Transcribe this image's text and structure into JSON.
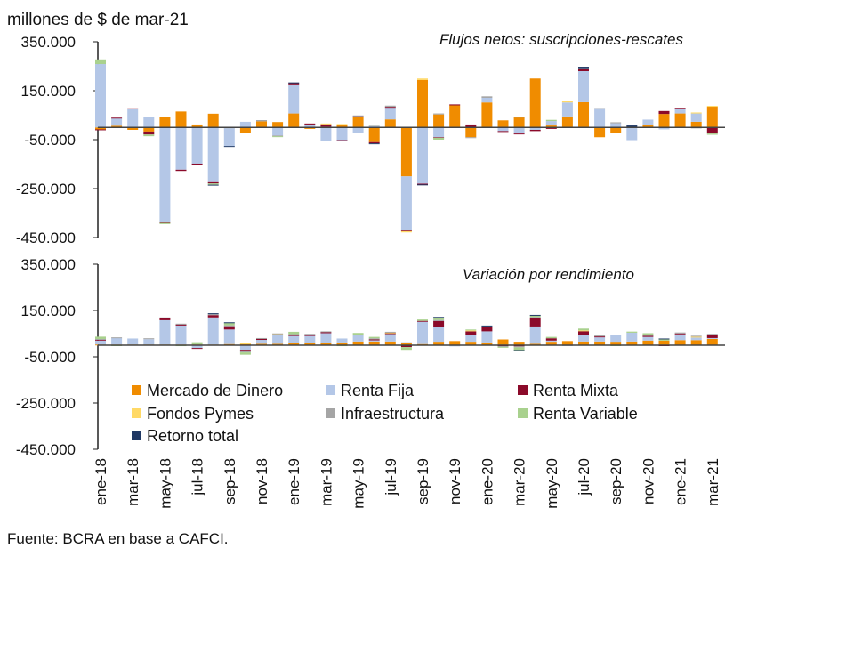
{
  "unit_label": "millones de $ de mar-21",
  "source": "Fuente: BCRA en base a CAFCI.",
  "colors": {
    "Mercado de Dinero": "#F08C00",
    "Renta Fija": "#B4C7E7",
    "Renta Mixta": "#8B0A2A",
    "Fondos Pymes": "#FFD966",
    "Infraestructura": "#A5A5A5",
    "Renta Variable": "#A9D18E",
    "Retorno total": "#1F3864"
  },
  "legend": [
    "Mercado de Dinero",
    "Renta Fija",
    "Renta Mixta",
    "Fondos Pymes",
    "Infraestructura",
    "Renta Variable",
    "Retorno total"
  ],
  "chart_data": [
    {
      "type": "bar",
      "stacked": true,
      "title": "Flujos netos: suscripciones-rescates",
      "ylabel": "millones de $ de mar-21",
      "ylim": [
        -450000,
        350000
      ],
      "yticks": [
        "350.000",
        "150.000",
        "-50.000",
        "-250.000",
        "-450.000"
      ],
      "categories": [
        "ene-18",
        "feb-18",
        "mar-18",
        "abr-18",
        "may-18",
        "jun-18",
        "jul-18",
        "ago-18",
        "sep-18",
        "oct-18",
        "nov-18",
        "dic-18",
        "ene-19",
        "feb-19",
        "mar-19",
        "abr-19",
        "may-19",
        "jun-19",
        "jul-19",
        "ago-19",
        "sep-19",
        "oct-19",
        "nov-19",
        "dic-19",
        "ene-20",
        "feb-20",
        "mar-20",
        "abr-20",
        "may-20",
        "jun-20",
        "jul-20",
        "ago-20",
        "sep-20",
        "oct-20",
        "nov-20",
        "dic-20",
        "ene-21",
        "feb-21",
        "mar-21"
      ],
      "series": [
        {
          "name": "Mercado de Dinero",
          "values": [
            -8000,
            7000,
            -10000,
            -17000,
            41000,
            65000,
            12000,
            56000,
            -3000,
            -24000,
            25000,
            22000,
            57000,
            -6000,
            3000,
            12000,
            41000,
            -60000,
            33000,
            -200000,
            194000,
            53000,
            90000,
            -40000,
            102000,
            29000,
            41000,
            200000,
            8000,
            45000,
            103000,
            -40000,
            -23000,
            0,
            11000,
            55000,
            57000,
            23000,
            85000
          ]
        },
        {
          "name": "Renta Fija",
          "values": [
            259000,
            30000,
            75000,
            44000,
            -385000,
            -173000,
            -148000,
            -224000,
            -73000,
            23000,
            0,
            -33000,
            119000,
            12000,
            -56000,
            -52000,
            -24000,
            8000,
            48000,
            -220000,
            -230000,
            -40000,
            0,
            0,
            19000,
            -15000,
            -25000,
            -10000,
            18000,
            57000,
            127000,
            75000,
            17000,
            -52000,
            21000,
            -8000,
            20000,
            34000,
            0
          ]
        },
        {
          "name": "Renta Mixta",
          "values": [
            -3000,
            3000,
            3000,
            -12000,
            -5000,
            -5000,
            -6000,
            -5000,
            0,
            0,
            0,
            0,
            5000,
            4000,
            10000,
            -3000,
            5000,
            -5000,
            3000,
            -4000,
            -3000,
            -2000,
            4000,
            12000,
            0,
            -3000,
            -3000,
            -5000,
            -6000,
            0,
            8000,
            0,
            0,
            0,
            0,
            12000,
            3000,
            0,
            -25000
          ]
        },
        {
          "name": "Fondos Pymes",
          "values": [
            0,
            0,
            0,
            0,
            0,
            0,
            0,
            0,
            0,
            0,
            0,
            0,
            0,
            0,
            3000,
            2000,
            0,
            3000,
            0,
            -5000,
            6000,
            0,
            0,
            0,
            0,
            0,
            0,
            0,
            0,
            6000,
            0,
            0,
            0,
            0,
            0,
            0,
            0,
            4000,
            3000
          ]
        },
        {
          "name": "Infraestructura",
          "values": [
            0,
            0,
            0,
            0,
            0,
            0,
            0,
            0,
            0,
            0,
            5000,
            -3000,
            0,
            0,
            0,
            0,
            3000,
            0,
            5000,
            0,
            0,
            4000,
            0,
            -3000,
            6000,
            0,
            3000,
            0,
            0,
            0,
            4000,
            0,
            4000,
            0,
            0,
            0,
            0,
            -4000,
            0
          ]
        },
        {
          "name": "Renta Variable",
          "values": [
            19000,
            0,
            0,
            -7000,
            -5000,
            0,
            0,
            -5000,
            0,
            0,
            0,
            -3000,
            0,
            0,
            0,
            0,
            0,
            0,
            0,
            0,
            0,
            -8000,
            0,
            0,
            0,
            0,
            0,
            0,
            5000,
            0,
            0,
            0,
            0,
            0,
            0,
            0,
            0,
            0,
            -5000
          ]
        },
        {
          "name": "Retorno total",
          "values": [
            0,
            0,
            0,
            0,
            0,
            0,
            0,
            -3000,
            -2000,
            0,
            0,
            0,
            3000,
            0,
            0,
            0,
            0,
            -3000,
            0,
            0,
            -3000,
            0,
            0,
            0,
            0,
            0,
            0,
            0,
            0,
            0,
            6000,
            3000,
            0,
            8000,
            0,
            0,
            0,
            0,
            0
          ]
        }
      ]
    },
    {
      "type": "bar",
      "stacked": true,
      "title": "Variación por rendimiento",
      "ylim": [
        -450000,
        350000
      ],
      "yticks": [
        "350.000",
        "150.000",
        "-50.000",
        "-250.000",
        "-450.000"
      ],
      "xticklabels": [
        "ene-18",
        "mar-18",
        "may-18",
        "jul-18",
        "sep-18",
        "nov-18",
        "ene-19",
        "mar-19",
        "may-19",
        "jul-19",
        "sep-19",
        "nov-19",
        "ene-20",
        "mar-20",
        "may-20",
        "jul-20",
        "sep-20",
        "nov-20",
        "ene-21",
        "mar-21"
      ],
      "categories": [
        "ene-18",
        "feb-18",
        "mar-18",
        "abr-18",
        "may-18",
        "jun-18",
        "jul-18",
        "ago-18",
        "sep-18",
        "oct-18",
        "nov-18",
        "dic-18",
        "ene-19",
        "feb-19",
        "mar-19",
        "abr-19",
        "may-19",
        "jun-19",
        "jul-19",
        "ago-19",
        "sep-19",
        "oct-19",
        "nov-19",
        "dic-19",
        "ene-20",
        "feb-20",
        "mar-20",
        "abr-20",
        "may-20",
        "jun-20",
        "jul-20",
        "ago-20",
        "sep-20",
        "oct-20",
        "nov-20",
        "dic-20",
        "ene-21",
        "feb-21",
        "mar-21"
      ],
      "series": [
        {
          "name": "Mercado de Dinero",
          "values": [
            3000,
            3000,
            3000,
            3000,
            3000,
            3000,
            3000,
            3000,
            5000,
            6000,
            6000,
            6000,
            10000,
            8000,
            10000,
            12000,
            16000,
            16000,
            16000,
            10000,
            5000,
            15000,
            18000,
            15000,
            12000,
            25000,
            15000,
            6000,
            15000,
            18000,
            16000,
            16000,
            15000,
            16000,
            20000,
            20000,
            22000,
            22000,
            27000
          ]
        },
        {
          "name": "Renta Fija",
          "values": [
            17000,
            28000,
            26000,
            23000,
            105000,
            82000,
            -12000,
            117000,
            63000,
            -20000,
            17000,
            40000,
            30000,
            32000,
            42000,
            17000,
            27000,
            6000,
            32000,
            3000,
            96000,
            64000,
            -5000,
            30000,
            48000,
            0,
            0,
            75000,
            5000,
            -3000,
            30000,
            18000,
            28000,
            38000,
            16000,
            0,
            25000,
            12000,
            4000
          ]
        },
        {
          "name": "Renta Mixta",
          "values": [
            4000,
            0,
            0,
            0,
            8000,
            5000,
            -3000,
            10000,
            14000,
            -7000,
            5000,
            0,
            5000,
            5000,
            5000,
            0,
            0,
            3000,
            5000,
            -8000,
            4000,
            25000,
            0,
            15000,
            18000,
            -4000,
            -5000,
            35000,
            10000,
            0,
            15000,
            4000,
            0,
            0,
            5000,
            -3000,
            4000,
            0,
            15000
          ]
        },
        {
          "name": "Fondos Pymes",
          "values": [
            0,
            0,
            0,
            0,
            0,
            0,
            0,
            0,
            0,
            2000,
            0,
            2000,
            0,
            0,
            0,
            0,
            0,
            0,
            2000,
            0,
            0,
            0,
            0,
            4000,
            0,
            0,
            0,
            0,
            0,
            0,
            3000,
            0,
            0,
            0,
            0,
            0,
            0,
            3000,
            0
          ]
        },
        {
          "name": "Infraestructura",
          "values": [
            3000,
            3000,
            0,
            4000,
            4000,
            3000,
            0,
            4000,
            4000,
            -4000,
            3000,
            3000,
            3000,
            4000,
            3000,
            0,
            3000,
            5000,
            3000,
            0,
            0,
            5000,
            0,
            0,
            4000,
            -3000,
            -4000,
            6000,
            0,
            0,
            0,
            4000,
            0,
            0,
            3000,
            0,
            4000,
            4000,
            3000
          ]
        },
        {
          "name": "Renta Variable",
          "values": [
            10000,
            -3000,
            0,
            0,
            0,
            -4000,
            10000,
            0,
            10000,
            -10000,
            0,
            0,
            10000,
            0,
            0,
            -4000,
            7000,
            6000,
            0,
            -12000,
            6000,
            10000,
            0,
            4000,
            0,
            -4000,
            -12000,
            6000,
            6000,
            0,
            8000,
            0,
            -3000,
            5000,
            8000,
            6000,
            0,
            0,
            0
          ]
        },
        {
          "name": "Retorno total",
          "values": [
            0,
            0,
            0,
            0,
            0,
            0,
            0,
            4000,
            3000,
            0,
            0,
            0,
            0,
            0,
            0,
            0,
            0,
            0,
            0,
            0,
            0,
            3000,
            0,
            0,
            3000,
            0,
            -3000,
            3000,
            0,
            0,
            0,
            0,
            0,
            0,
            0,
            3000,
            0,
            0,
            0
          ]
        }
      ]
    }
  ]
}
